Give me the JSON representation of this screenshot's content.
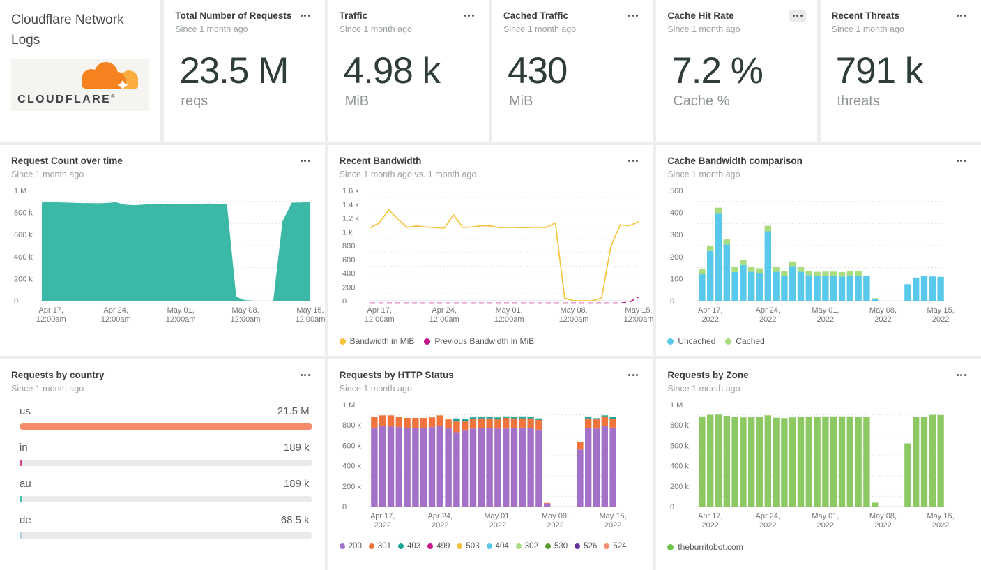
{
  "logo_panel": {
    "title": "Cloudflare Network Logs",
    "brand": "CLOUDFLARE",
    "brand_mark": "®"
  },
  "stats": [
    {
      "title": "Total Number of Requests",
      "subtitle": "Since 1 month ago",
      "value": "23.5 M",
      "unit": "reqs"
    },
    {
      "title": "Traffic",
      "subtitle": "Since 1 month ago",
      "value": "4.98 k",
      "unit": "MiB"
    },
    {
      "title": "Cached Traffic",
      "subtitle": "Since 1 month ago",
      "value": "430",
      "unit": "MiB"
    },
    {
      "title": "Cache Hit Rate",
      "subtitle": "Since 1 month ago",
      "value": "7.2 %",
      "unit": "Cache %"
    },
    {
      "title": "Recent Threats",
      "subtitle": "Since 1 month ago",
      "value": "791 k",
      "unit": "threats"
    }
  ],
  "chart_data": [
    {
      "id": "request-count",
      "type": "area",
      "title": "Request Count over time",
      "subtitle": "Since 1 month ago",
      "color": "#3cb9a6",
      "ylim": [
        0,
        1000
      ],
      "grid": "dotted-minor",
      "legend_position": "none",
      "yticks": {
        "values": [
          0,
          200,
          400,
          600,
          800,
          1000
        ],
        "labels": [
          "0",
          "200 k",
          "400 k",
          "600 k",
          "800 k",
          "1 M"
        ]
      },
      "x_ticks": {
        "idx": [
          1,
          8,
          15,
          22,
          29
        ],
        "labels": [
          [
            "Apr 17,",
            "12:00am"
          ],
          [
            "Apr 24,",
            "12:00am"
          ],
          [
            "May 01,",
            "12:00am"
          ],
          [
            "May 08,",
            "12:00am"
          ],
          [
            "May 15,",
            "12:00am"
          ]
        ]
      },
      "unit": "thousand requests per day",
      "values": [
        891,
        894,
        892,
        889,
        886,
        885,
        884,
        886,
        893,
        871,
        866,
        872,
        877,
        879,
        878,
        876,
        879,
        878,
        881,
        879,
        877,
        35,
        5,
        0,
        0,
        0,
        720,
        889,
        891,
        893
      ]
    },
    {
      "id": "recent-bandwidth",
      "type": "line",
      "title": "Recent Bandwidth",
      "subtitle": "Since 1 month ago vs. 1 month ago",
      "ylim": [
        0,
        1600
      ],
      "grid": "dotted-minor",
      "legend_position": "bottom",
      "yticks": {
        "values": [
          0,
          200,
          400,
          600,
          800,
          1000,
          1200,
          1400,
          1600
        ],
        "labels": [
          "0",
          "200",
          "400",
          "600",
          "800",
          "1 k",
          "1.2 k",
          "1.4 k",
          "1.6 k"
        ]
      },
      "x_ticks": {
        "idx": [
          1,
          8,
          15,
          22,
          29
        ],
        "labels": [
          [
            "Apr 17,",
            "12:00am"
          ],
          [
            "Apr 24,",
            "12:00am"
          ],
          [
            "May 01,",
            "12:00am"
          ],
          [
            "May 08,",
            "12:00am"
          ],
          [
            "May 15,",
            "12:00am"
          ]
        ]
      },
      "unit": "MiB",
      "series": [
        {
          "name": "Bandwidth in MiB",
          "color": "#f8c33c",
          "dash": false,
          "values": [
            1060,
            1130,
            1320,
            1180,
            1065,
            1085,
            1070,
            1060,
            1055,
            1245,
            1065,
            1070,
            1090,
            1085,
            1060,
            1065,
            1060,
            1060,
            1068,
            1062,
            1130,
            40,
            0,
            0,
            0,
            40,
            790,
            1100,
            1090,
            1145
          ]
        },
        {
          "name": "Previous Bandwidth in MiB",
          "color": "#c2188c",
          "dash": true,
          "values": [
            -35,
            -35,
            -35,
            -35,
            -35,
            -35,
            -35,
            -35,
            -35,
            -35,
            -35,
            -35,
            -35,
            -35,
            -35,
            -35,
            -35,
            -35,
            -35,
            -35,
            -35,
            -35,
            -35,
            -35,
            -35,
            -35,
            -35,
            -35,
            -20,
            55
          ]
        }
      ],
      "legend": [
        {
          "label": "Bandwidth in MiB",
          "color": "#f8c33c"
        },
        {
          "label": "Previous Bandwidth in MiB",
          "color": "#c2188c"
        }
      ]
    },
    {
      "id": "cache-bandwidth",
      "type": "bar",
      "title": "Cache Bandwidth comparison",
      "subtitle": "Since 1 month ago",
      "ylim": [
        0,
        500
      ],
      "grid": "dotted-minor",
      "legend_position": "bottom",
      "yticks": {
        "values": [
          0,
          100,
          200,
          300,
          400,
          500
        ],
        "labels": [
          "0",
          "100",
          "200",
          "300",
          "400",
          "500"
        ]
      },
      "x_ticks": {
        "idx": [
          1,
          8,
          15,
          22,
          29
        ],
        "labels": [
          [
            "Apr 17,",
            "2022"
          ],
          [
            "Apr 24,",
            "2022"
          ],
          [
            "May 01,",
            "2022"
          ],
          [
            "May 08,",
            "2022"
          ],
          [
            "May 15,",
            "2022"
          ]
        ]
      },
      "unit": "MiB",
      "series": [
        {
          "name": "Uncached",
          "color": "#58c9ea",
          "values": [
            120,
            225,
            395,
            255,
            130,
            162,
            131,
            126,
            315,
            131,
            112,
            157,
            131,
            116,
            111,
            112,
            112,
            110,
            115,
            113,
            112,
            10,
            0,
            0,
            0,
            75,
            105,
            113,
            110,
            108
          ]
        },
        {
          "name": "Cached",
          "color": "#a9dc7e",
          "values": [
            25,
            25,
            27,
            23,
            22,
            24,
            21,
            21,
            25,
            24,
            21,
            21,
            23,
            19,
            20,
            20,
            20,
            20,
            20,
            20,
            0,
            2,
            0,
            0,
            0,
            0,
            0,
            0,
            0,
            0
          ]
        }
      ],
      "legend": [
        {
          "label": "Uncached",
          "color": "#58c9ea"
        },
        {
          "label": "Cached",
          "color": "#a9dc7e"
        }
      ]
    },
    {
      "id": "requests-by-country",
      "type": "hbar",
      "title": "Requests by country",
      "subtitle": "Since 1 month ago",
      "rows": [
        {
          "label": "us",
          "value": "21.5 M",
          "pct": 100,
          "color": "#f58b6c"
        },
        {
          "label": "in",
          "value": "189 k",
          "pct": 0.9,
          "color": "#d9428c"
        },
        {
          "label": "au",
          "value": "189 k",
          "pct": 0.9,
          "color": "#41bfad"
        },
        {
          "label": "de",
          "value": "68.5 k",
          "pct": 0.32,
          "color": "#afccdf"
        }
      ]
    },
    {
      "id": "requests-by-http-status",
      "type": "bar",
      "title": "Requests by HTTP Status",
      "subtitle": "Since 1 month ago",
      "ylim": [
        0,
        1000
      ],
      "grid": "dotted-minor",
      "legend_position": "bottom",
      "yticks": {
        "values": [
          0,
          200,
          400,
          600,
          800,
          1000
        ],
        "labels": [
          "0",
          "200 k",
          "400 k",
          "600 k",
          "800 k",
          "1 M"
        ]
      },
      "x_ticks": {
        "idx": [
          1,
          8,
          15,
          22,
          29
        ],
        "labels": [
          [
            "Apr 17,",
            "2022"
          ],
          [
            "Apr 24,",
            "2022"
          ],
          [
            "May 01,",
            "2022"
          ],
          [
            "May 08,",
            "2022"
          ],
          [
            "May 15,",
            "2022"
          ]
        ]
      },
      "unit": "thousand requests per day",
      "series": [
        {
          "name": "200",
          "color": "#a471c8",
          "values": [
            775,
            790,
            785,
            780,
            770,
            770,
            770,
            780,
            790,
            770,
            730,
            745,
            765,
            770,
            770,
            765,
            765,
            770,
            775,
            770,
            755,
            30,
            0,
            0,
            0,
            560,
            770,
            765,
            790,
            775
          ]
        },
        {
          "name": "301",
          "color": "#f0743c",
          "values": [
            105,
            105,
            110,
            100,
            100,
            100,
            100,
            95,
            105,
            85,
            105,
            90,
            95,
            95,
            95,
            90,
            105,
            95,
            90,
            95,
            95,
            6,
            0,
            0,
            0,
            70,
            95,
            90,
            95,
            85
          ]
        },
        {
          "name": "403",
          "color": "#1ca392",
          "values": [
            0,
            0,
            0,
            0,
            0,
            0,
            0,
            0,
            0,
            0,
            30,
            25,
            15,
            12,
            12,
            20,
            15,
            12,
            20,
            15,
            15,
            0,
            0,
            0,
            0,
            0,
            12,
            12,
            10,
            18
          ]
        }
      ],
      "legend": [
        {
          "label": "200",
          "color": "#a471c8"
        },
        {
          "label": "301",
          "color": "#f0743c"
        },
        {
          "label": "403",
          "color": "#1ca392"
        },
        {
          "label": "499",
          "color": "#c9188c"
        },
        {
          "label": "503",
          "color": "#f5c13d"
        },
        {
          "label": "404",
          "color": "#55c7e8"
        },
        {
          "label": "302",
          "color": "#a8dc82"
        },
        {
          "label": "530",
          "color": "#5a9a34"
        },
        {
          "label": "526",
          "color": "#66309c"
        },
        {
          "label": "524",
          "color": "#f98b70"
        }
      ]
    },
    {
      "id": "requests-by-zone",
      "type": "bar",
      "title": "Requests by Zone",
      "subtitle": "Since 1 month ago",
      "ylim": [
        0,
        1000
      ],
      "grid": "dotted-minor",
      "legend_position": "bottom",
      "yticks": {
        "values": [
          0,
          200,
          400,
          600,
          800,
          1000
        ],
        "labels": [
          "0",
          "200 k",
          "400 k",
          "600 k",
          "800 k",
          "1 M"
        ]
      },
      "x_ticks": {
        "idx": [
          1,
          8,
          15,
          22,
          29
        ],
        "labels": [
          [
            "Apr 17,",
            "2022"
          ],
          [
            "Apr 24,",
            "2022"
          ],
          [
            "May 01,",
            "2022"
          ],
          [
            "May 08,",
            "2022"
          ],
          [
            "May 15,",
            "2022"
          ]
        ]
      },
      "unit": "thousand requests per day",
      "series": [
        {
          "name": "theburritobot.com",
          "color": "#8cc963",
          "values": [
            885,
            900,
            902,
            890,
            878,
            875,
            876,
            878,
            895,
            872,
            868,
            875,
            878,
            880,
            882,
            885,
            885,
            885,
            885,
            883,
            880,
            38,
            0,
            0,
            0,
            620,
            878,
            880,
            900,
            898
          ]
        }
      ],
      "legend": [
        {
          "label": "theburritobot.com",
          "color": "#6cc24a"
        }
      ]
    }
  ]
}
